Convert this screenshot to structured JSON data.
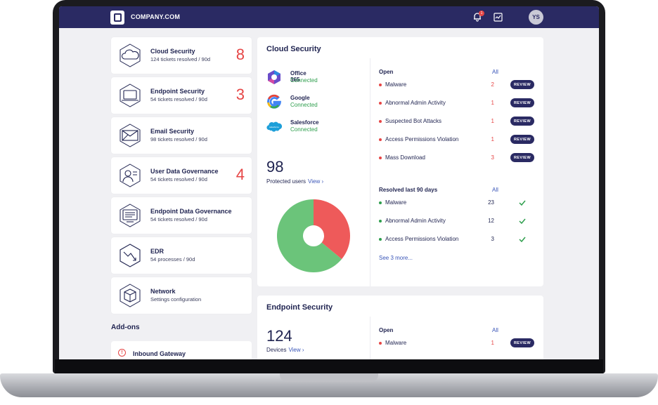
{
  "header": {
    "brand": "COMPANY.COM",
    "notification_count": "1",
    "avatar_initials": "YS"
  },
  "sidebar": {
    "items": [
      {
        "title": "Cloud Security",
        "subtitle": "124 tickets resolved / 90d",
        "count": "8",
        "icon": "cloud-icon"
      },
      {
        "title": "Endpoint Security",
        "subtitle": "54 tickets resolved / 90d",
        "count": "3",
        "icon": "laptop-icon"
      },
      {
        "title": "Email Security",
        "subtitle": "98 tickets resolved / 90d",
        "count": "",
        "icon": "envelope-icon"
      },
      {
        "title": "User Data Governance",
        "subtitle": "54 tickets resolved / 90d",
        "count": "4",
        "icon": "user-badge-icon"
      },
      {
        "title": "Endpoint Data Governance",
        "subtitle": "54 tickets resolved / 90d",
        "count": "",
        "icon": "monitor-document-icon"
      },
      {
        "title": "EDR",
        "subtitle": "54 processes / 90d",
        "count": "",
        "icon": "edr-hexagon-icon"
      },
      {
        "title": "Network",
        "subtitle": "Settings configuration",
        "count": "",
        "icon": "network-cube-icon"
      }
    ],
    "addons_title": "Add-ons",
    "addons": [
      {
        "label": "Inbound Gateway",
        "icon": "alert-circle-icon"
      }
    ]
  },
  "cloud_security": {
    "title": "Cloud Security",
    "integrations": [
      {
        "name": "Office 365",
        "status": "Connected",
        "icon": "office365-icon"
      },
      {
        "name": "Google",
        "status": "Connected",
        "icon": "google-icon"
      },
      {
        "name": "Salesforce",
        "status": "Connected",
        "icon": "salesforce-icon"
      }
    ],
    "salesforce_logo_text": "salesforce",
    "protected_users": "98",
    "protected_users_label": "Protected users",
    "view_link": "View ›",
    "donut": {
      "red_fraction": 0.36,
      "green_fraction": 0.64,
      "colors": {
        "red": "#ee5a5a",
        "green": "#6bc47a"
      }
    },
    "open": {
      "title": "Open",
      "all_link": "All",
      "rows": [
        {
          "label": "Malware",
          "count": "2",
          "action": "REVIEW"
        },
        {
          "label": "Abnormal Admin Activity",
          "count": "1",
          "action": "REVIEW"
        },
        {
          "label": "Suspected Bot Attacks",
          "count": "1",
          "action": "REVIEW"
        },
        {
          "label": "Access Permissions Violation",
          "count": "1",
          "action": "REVIEW"
        },
        {
          "label": "Mass Download",
          "count": "3",
          "action": "REVIEW"
        }
      ]
    },
    "resolved": {
      "title": "Resolved last 90 days",
      "all_link": "All",
      "rows": [
        {
          "label": "Malware",
          "count": "23"
        },
        {
          "label": "Abnormal Admin Activity",
          "count": "12"
        },
        {
          "label": "Access Permissions Violation",
          "count": "3"
        }
      ],
      "see_more": "See 3 more..."
    }
  },
  "endpoint_security": {
    "title": "Endpoint Security",
    "devices": "124",
    "devices_label": "Devices",
    "view_link": "View ›",
    "open": {
      "title": "Open",
      "all_link": "All",
      "rows": [
        {
          "label": "Malware",
          "count": "1",
          "action": "REVIEW"
        }
      ]
    }
  },
  "colors": {
    "navy": "#2a2a63",
    "accent_red": "#e64545",
    "connected_green": "#2e9e4d",
    "link_blue": "#3a56b8"
  }
}
